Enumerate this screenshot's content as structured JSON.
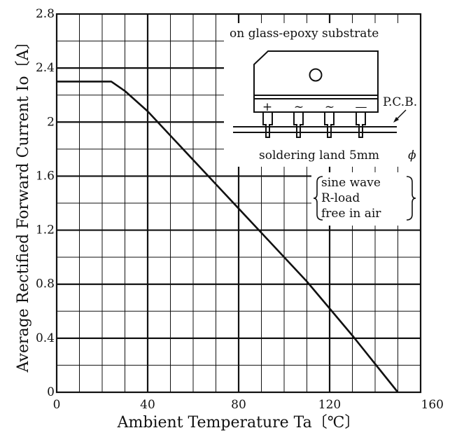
{
  "chart_data": {
    "type": "line",
    "xlabel": "Ambient Temperature Ta〔℃〕",
    "ylabel": "Average Rectified Forward Current Io〔A〕",
    "xlim": [
      0,
      160
    ],
    "ylim": [
      0,
      2.8
    ],
    "x_ticks": [
      "0",
      "40",
      "80",
      "120",
      "160"
    ],
    "y_ticks": [
      "0",
      "0.4",
      "0.8",
      "1.2",
      "1.6",
      "2",
      "2.4",
      "2.8"
    ],
    "grid": true,
    "series": [
      {
        "x": [
          0,
          24,
          30,
          40,
          50,
          60,
          70,
          80,
          90,
          100,
          110,
          120,
          130,
          140,
          150
        ],
        "y": [
          2.3,
          2.3,
          2.23,
          2.08,
          1.9,
          1.72,
          1.54,
          1.36,
          1.18,
          1.0,
          0.82,
          0.62,
          0.42,
          0.21,
          0.0
        ]
      }
    ],
    "annotations": {
      "substrate": "on glass-epoxy substrate",
      "pcb": "P.C.B.",
      "land": "soldering  land 5mm",
      "phi": "ϕ",
      "pins": [
        "+",
        "~",
        "~",
        "—"
      ],
      "conditions": [
        "sine wave",
        "R-load",
        "free in air"
      ]
    }
  }
}
